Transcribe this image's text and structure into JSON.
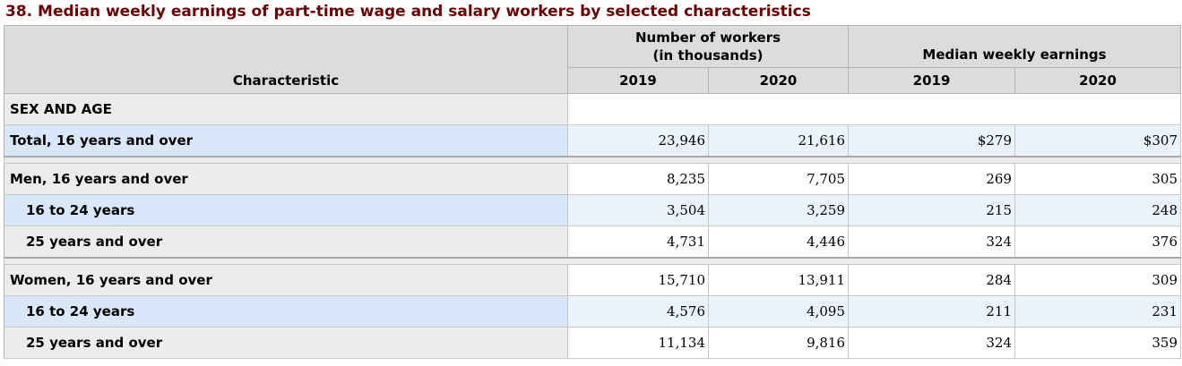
{
  "title": "38. Median weekly earnings of part-time wage and salary workers by selected characteristics",
  "header": {
    "characteristic": "Characteristic",
    "group_workers": "Number of workers\n(in thousands)",
    "group_workers_line1": "Number of workers",
    "group_workers_line2": "(in thousands)",
    "group_earnings": "Median weekly earnings",
    "years": [
      "2019",
      "2020",
      "2019",
      "2020"
    ]
  },
  "section_label": "SEX AND AGE",
  "rows": [
    {
      "label": "Total, 16 years and over",
      "values": [
        "23,946",
        "21,616",
        "$279",
        "$307"
      ]
    },
    {
      "label": "Men, 16 years and over",
      "values": [
        "8,235",
        "7,705",
        "269",
        "305"
      ]
    },
    {
      "label": "16 to 24 years",
      "values": [
        "3,504",
        "3,259",
        "215",
        "248"
      ]
    },
    {
      "label": "25 years and over",
      "values": [
        "4,731",
        "4,446",
        "324",
        "376"
      ]
    },
    {
      "label": "Women, 16 years and over",
      "values": [
        "15,710",
        "13,911",
        "284",
        "309"
      ]
    },
    {
      "label": "16 to 24 years",
      "values": [
        "4,576",
        "4,095",
        "211",
        "231"
      ]
    },
    {
      "label": "25 years and over",
      "values": [
        "11,134",
        "9,816",
        "324",
        "359"
      ]
    }
  ]
}
